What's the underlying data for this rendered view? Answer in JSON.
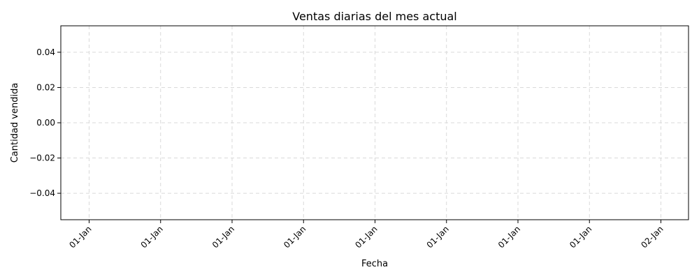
{
  "chart_data": {
    "type": "line",
    "title": "Ventas diarias del mes actual",
    "xlabel": "Fecha",
    "ylabel": "Cantidad vendida",
    "x_ticks": [
      "01-Jan",
      "01-Jan",
      "01-Jan",
      "01-Jan",
      "01-Jan",
      "01-Jan",
      "01-Jan",
      "01-Jan",
      "02-Jan"
    ],
    "y_ticks": [
      0.04,
      0.02,
      0.0,
      -0.02,
      -0.04
    ],
    "y_tick_labels": [
      "0.04",
      "0.02",
      "0.00",
      "−0.02",
      "−0.04"
    ],
    "ylim": [
      -0.055,
      0.055
    ],
    "grid": true,
    "series": []
  }
}
